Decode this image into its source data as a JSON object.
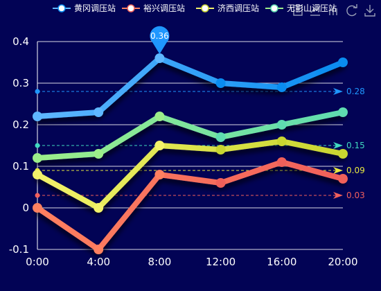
{
  "toolbox": {
    "icons": [
      "data-view-icon",
      "line-chart-icon",
      "bar-chart-icon",
      "restore-icon",
      "download-icon"
    ]
  },
  "chart_data": {
    "type": "line",
    "title": "",
    "xlabel": "",
    "ylabel": "",
    "categories": [
      "0:00",
      "4:00",
      "8:00",
      "12:00",
      "16:00",
      "20:00"
    ],
    "ylim": [
      -0.1,
      0.4
    ],
    "yticks": [
      "-0.1",
      "0",
      "0.1",
      "0.2",
      "0.3",
      "0.4"
    ],
    "grid": true,
    "legend_position": "top",
    "series": [
      {
        "name": "黄冈调压站",
        "values": [
          0.22,
          0.23,
          0.36,
          0.3,
          0.29,
          0.35
        ],
        "color_start": "#5fb7ff",
        "color_end": "#0a8cf0",
        "mark_line": {
          "value": 0.28,
          "label": "0.28",
          "color": "#1f97ff"
        },
        "max_point": {
          "index": 2,
          "label": "0.36",
          "color": "#1f97ff"
        }
      },
      {
        "name": "裕兴调压站",
        "values": [
          0.0,
          -0.1,
          0.08,
          0.06,
          0.11,
          0.07
        ],
        "color_start": "#ff8060",
        "color_end": "#f0605a",
        "mark_line": {
          "value": 0.03,
          "label": "0.03",
          "color": "#f25f5c"
        }
      },
      {
        "name": "济西调压站",
        "values": [
          0.08,
          0.0,
          0.15,
          0.14,
          0.16,
          0.13
        ],
        "color_start": "#f2f26a",
        "color_end": "#c9d630",
        "mark_line": {
          "value": 0.09,
          "label": "0.09",
          "color": "#e8e840"
        }
      },
      {
        "name": "无影山调压站",
        "values": [
          0.12,
          0.13,
          0.22,
          0.17,
          0.2,
          0.23
        ],
        "color_start": "#9cee8a",
        "color_end": "#5fdcb0",
        "mark_line": {
          "value": 0.15,
          "label": "0.15",
          "color": "#40d9c0"
        }
      }
    ]
  }
}
